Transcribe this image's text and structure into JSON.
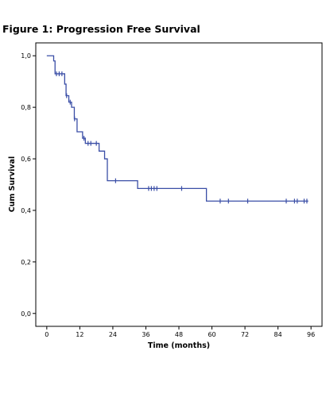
{
  "figure_title": "Figure 1: Progression Free Survival",
  "chart_data": {
    "type": "line",
    "title": "",
    "xlabel": "Time (months)",
    "ylabel": "Cum Survival",
    "xlim": [
      -4,
      100
    ],
    "ylim": [
      -0.05,
      1.05
    ],
    "x_ticks": [
      0,
      12,
      24,
      36,
      48,
      60,
      72,
      84,
      96
    ],
    "x_tick_labels": [
      "0",
      "12",
      "24",
      "36",
      "48",
      "60",
      "72",
      "84",
      "96"
    ],
    "y_ticks": [
      0.0,
      0.2,
      0.4,
      0.6,
      0.8,
      1.0
    ],
    "y_tick_labels": [
      "0,0",
      "0,2",
      "0,4",
      "0,6",
      "0,8",
      "1,0"
    ],
    "grid": false,
    "line_color": "#3a4ea6",
    "series": [
      {
        "steps": [
          [
            0,
            1.0
          ],
          [
            2.5,
            0.98
          ],
          [
            3,
            0.93
          ],
          [
            6.5,
            0.89
          ],
          [
            7,
            0.845
          ],
          [
            8,
            0.82
          ],
          [
            9,
            0.8
          ],
          [
            10,
            0.755
          ],
          [
            11,
            0.705
          ],
          [
            13,
            0.68
          ],
          [
            14,
            0.66
          ],
          [
            19,
            0.63
          ],
          [
            21,
            0.6
          ],
          [
            22,
            0.515
          ],
          [
            33,
            0.485
          ],
          [
            58,
            0.436
          ],
          [
            95,
            0.436
          ]
        ],
        "censored": [
          [
            3.5,
            0.93
          ],
          [
            4.5,
            0.93
          ],
          [
            5.5,
            0.93
          ],
          [
            7.2,
            0.845
          ],
          [
            8.5,
            0.82
          ],
          [
            10.1,
            0.755
          ],
          [
            13.5,
            0.68
          ],
          [
            15,
            0.66
          ],
          [
            16,
            0.66
          ],
          [
            18,
            0.66
          ],
          [
            25,
            0.515
          ],
          [
            37,
            0.485
          ],
          [
            38,
            0.485
          ],
          [
            39,
            0.485
          ],
          [
            40,
            0.485
          ],
          [
            49,
            0.485
          ],
          [
            63,
            0.436
          ],
          [
            66,
            0.436
          ],
          [
            73,
            0.436
          ],
          [
            87,
            0.436
          ],
          [
            90,
            0.436
          ],
          [
            91,
            0.436
          ],
          [
            93.5,
            0.436
          ],
          [
            94.5,
            0.436
          ]
        ]
      }
    ]
  }
}
